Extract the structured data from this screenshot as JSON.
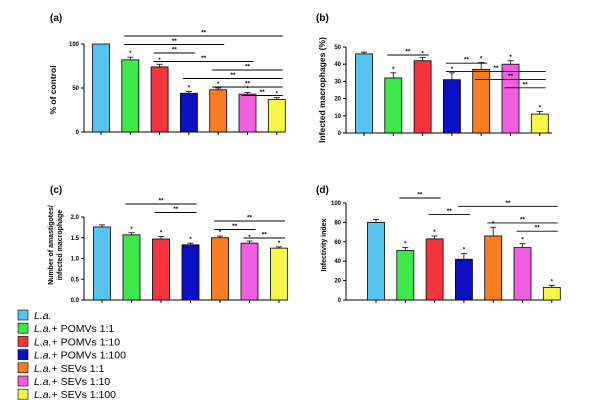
{
  "legend": {
    "items": [
      {
        "italic": "L.a.",
        "rest": "",
        "color": "#56c4ee"
      },
      {
        "italic": "L.a.",
        "rest": "+ POMVs 1:1",
        "color": "#3ee84a"
      },
      {
        "italic": "L.a.",
        "rest": "+ POMVs 1:10",
        "color": "#f4353e"
      },
      {
        "italic": "L.a.",
        "rest": "+ POMVs 1:100",
        "color": "#0d0fc4"
      },
      {
        "italic": "L.a.",
        "rest": "+ SEVs 1:1",
        "color": "#f77c22"
      },
      {
        "italic": "L.a.",
        "rest": "+ SEVs 1:10",
        "color": "#ef5fe0"
      },
      {
        "italic": "L.a.",
        "rest": "+ SEVs 1:100",
        "color": "#f8f54a"
      }
    ]
  },
  "chart_data": [
    {
      "panel": "(a)",
      "type": "bar",
      "ylabel": "% of control",
      "ylim": [
        0,
        100
      ],
      "yticks": [
        0,
        50,
        100
      ],
      "categories": [
        "L.a.",
        "L.a.+ POMVs 1:1",
        "L.a.+ POMVs 1:10",
        "L.a.+ POMVs 1:100",
        "L.a.+ SEVs 1:1",
        "L.a.+ SEVs 1:10",
        "L.a.+ SEVs 1:100"
      ],
      "values": [
        100,
        82,
        74,
        44,
        48,
        43,
        37
      ],
      "errors": [
        0,
        3,
        3,
        2,
        2,
        2,
        2
      ],
      "stars": [
        false,
        true,
        true,
        true,
        true,
        true,
        true
      ],
      "star_label": "*",
      "significance_label": "**",
      "significance": [
        [
          1,
          6
        ],
        [
          1,
          4
        ],
        [
          2,
          3
        ],
        [
          2,
          5
        ],
        [
          4,
          6
        ],
        [
          3,
          6
        ],
        [
          4,
          6
        ],
        [
          5,
          6
        ]
      ]
    },
    {
      "panel": "(b)",
      "type": "bar",
      "ylabel": "Infected macrophages (%)",
      "ylim": [
        0,
        50
      ],
      "yticks": [
        0,
        10,
        20,
        30,
        40,
        50
      ],
      "categories": [
        "L.a.",
        "L.a.+ POMVs 1:1",
        "L.a.+ POMVs 1:10",
        "L.a.+ POMVs 1:100",
        "L.a.+ SEVs 1:1",
        "L.a.+ SEVs 1:10",
        "L.a.+ SEVs 1:100"
      ],
      "values": [
        46,
        32,
        42,
        31,
        37,
        40,
        11
      ],
      "errors": [
        1,
        3,
        2,
        4,
        4,
        2,
        1.5
      ],
      "stars": [
        false,
        true,
        true,
        true,
        true,
        true,
        true
      ],
      "star_label": "*",
      "significance_label": "**",
      "significance": [
        [
          1,
          2
        ],
        [
          3,
          4
        ],
        [
          3,
          6
        ],
        [
          4,
          6
        ],
        [
          5,
          6
        ]
      ]
    },
    {
      "panel": "(c)",
      "type": "bar",
      "ylabel": "Number of amastigotes/ infected macrophage",
      "ylim": [
        0,
        2.0
      ],
      "yticks": [
        0.0,
        0.5,
        1.0,
        1.5,
        2.0
      ],
      "categories": [
        "L.a.",
        "L.a.+ POMVs 1:1",
        "L.a.+ POMVs 1:10",
        "L.a.+ POMVs 1:100",
        "L.a.+ SEVs 1:1",
        "L.a.+ SEVs 1:10",
        "L.a.+ SEVs 1:100"
      ],
      "values": [
        1.76,
        1.57,
        1.47,
        1.33,
        1.5,
        1.37,
        1.25
      ],
      "errors": [
        0.05,
        0.05,
        0.06,
        0.04,
        0.04,
        0.05,
        0.03
      ],
      "stars": [
        false,
        true,
        true,
        true,
        true,
        true,
        true
      ],
      "star_label": "*",
      "significance_label": "**",
      "significance": [
        [
          1,
          3
        ],
        [
          2,
          3
        ],
        [
          4,
          6
        ],
        [
          4,
          5
        ],
        [
          5,
          6
        ]
      ]
    },
    {
      "panel": "(d)",
      "type": "bar",
      "ylabel": "Infectivity index",
      "ylim": [
        0,
        100
      ],
      "yticks": [
        0,
        20,
        40,
        60,
        80,
        100
      ],
      "categories": [
        "L.a.",
        "L.a.+ POMVs 1:1",
        "L.a.+ POMVs 1:10",
        "L.a.+ POMVs 1:100",
        "L.a.+ SEVs 1:1",
        "L.a.+ SEVs 1:10",
        "L.a.+ SEVs 1:100"
      ],
      "values": [
        80,
        51,
        63,
        42,
        66,
        54,
        13
      ],
      "errors": [
        3,
        3,
        3,
        6,
        9,
        4,
        2
      ],
      "stars": [
        false,
        true,
        true,
        true,
        true,
        true,
        true
      ],
      "star_label": "*",
      "significance_label": "**",
      "significance": [
        [
          1,
          2
        ],
        [
          3,
          6
        ],
        [
          2,
          3
        ],
        [
          4,
          6
        ],
        [
          5,
          6
        ]
      ]
    }
  ]
}
